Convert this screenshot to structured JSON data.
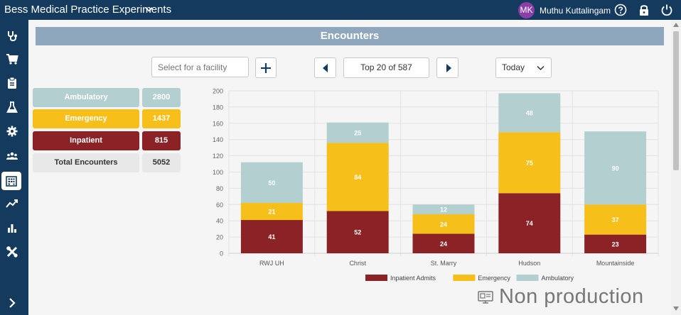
{
  "header": {
    "app_title": "Bess Medical Practice Experiments",
    "user_initials": "MK",
    "user_name": "Muthu Kuttalingam"
  },
  "sidebar": {
    "items": [
      {
        "icon": "stethoscope-icon"
      },
      {
        "icon": "cart-icon"
      },
      {
        "icon": "clipboard-icon"
      },
      {
        "icon": "flask-icon"
      },
      {
        "icon": "gear-icon"
      },
      {
        "icon": "people-icon"
      },
      {
        "icon": "building-icon",
        "active": true
      },
      {
        "icon": "trend-icon"
      },
      {
        "icon": "bar-chart-icon"
      },
      {
        "icon": "tools-icon"
      }
    ],
    "expand_icon": "chevron-right-icon"
  },
  "section_title": "Encounters",
  "toolbar": {
    "facility_placeholder": "Select for a facility",
    "pager_label": "Top 20 of 587",
    "date_range": "Today"
  },
  "summary": {
    "rows": [
      {
        "label": "Ambulatory",
        "value": "2800"
      },
      {
        "label": "Emergency",
        "value": "1437"
      },
      {
        "label": "Inpatient",
        "value": "815"
      },
      {
        "label": "Total Encounters",
        "value": "5052"
      }
    ]
  },
  "chart_data": {
    "type": "bar",
    "stacked": true,
    "categories": [
      "RWJ UH",
      "Christ",
      "St. Marry",
      "Hudson",
      "Mountainside"
    ],
    "series": [
      {
        "name": "Inpatient Admits",
        "values": [
          41,
          52,
          24,
          74,
          23
        ],
        "color": "#8b2326"
      },
      {
        "name": "Emergency",
        "values": [
          21,
          84,
          24,
          75,
          37
        ],
        "color": "#f6bf1a"
      },
      {
        "name": "Ambulatory",
        "values": [
          50,
          25,
          12,
          48,
          90
        ],
        "color": "#b3cfcf"
      }
    ],
    "ylim": [
      0,
      200
    ],
    "yticks": [
      0,
      20,
      40,
      60,
      80,
      100,
      120,
      140,
      160,
      180,
      200
    ],
    "grid": true,
    "legend": "bottom"
  },
  "colors": {
    "header_bg": "#143a5e",
    "section_header_bg": "#8fa7bd",
    "ambulatory": "#b3cfcf",
    "emergency": "#f6bf1a",
    "inpatient": "#8b2326",
    "total_bg": "#e8e8e8"
  },
  "watermark": "Non production"
}
